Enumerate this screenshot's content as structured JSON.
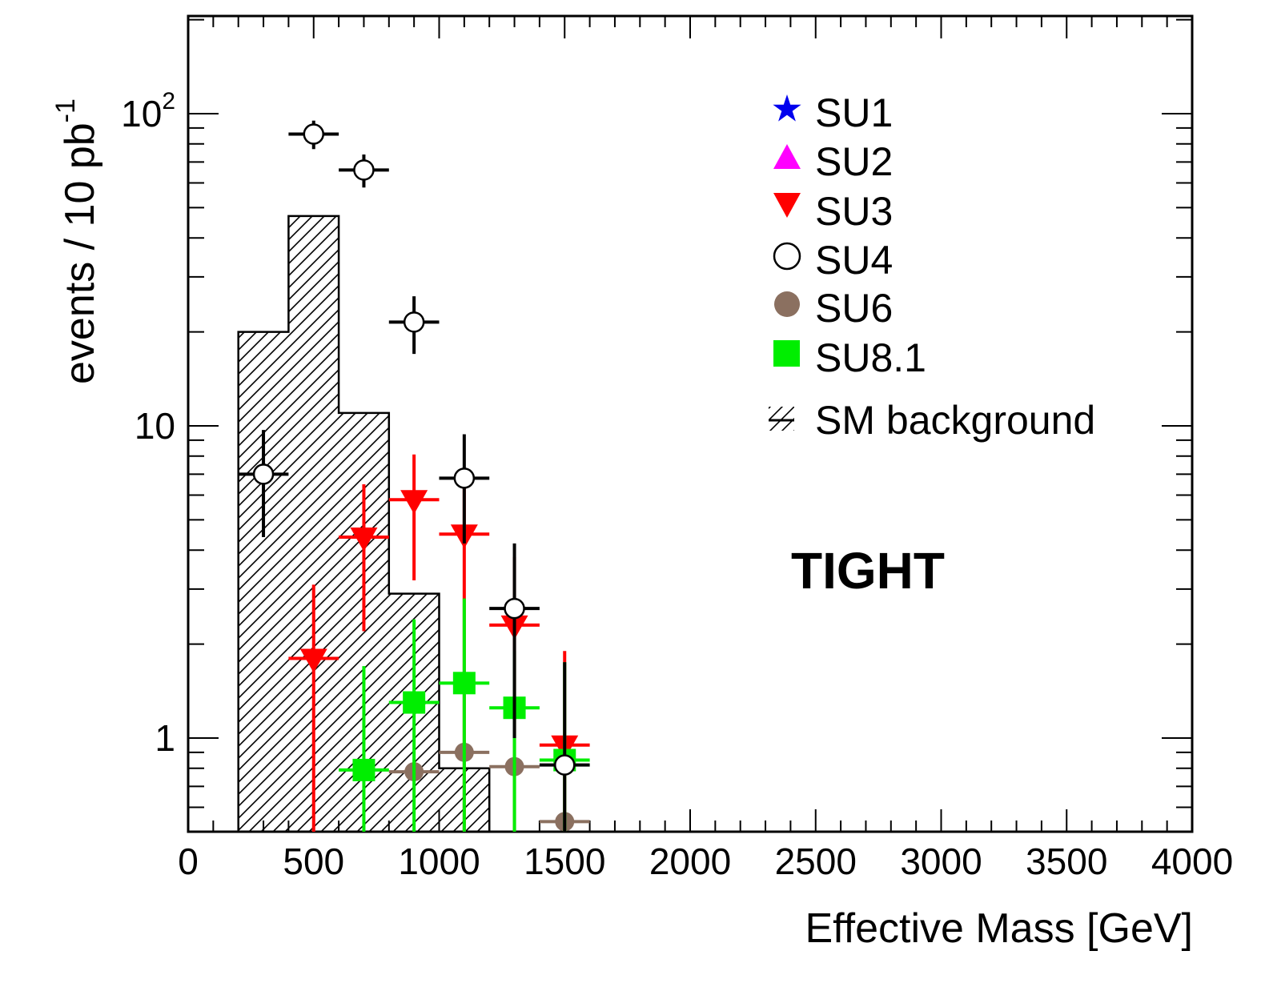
{
  "chart_data": {
    "type": "scatter",
    "xlabel": "Effective Mass [GeV]",
    "ylabel": "events / 10 pb",
    "ylabel_sup": "-1",
    "xlim": [
      0,
      4000
    ],
    "ylim": [
      0.5,
      240
    ],
    "y_scale": "log",
    "x_ticks": [
      "0",
      "500",
      "1000",
      "1500",
      "2000",
      "2500",
      "3000",
      "3500",
      "4000"
    ],
    "y_tick_labels": {
      "y1": "1",
      "y10": "10",
      "y100_base": "10",
      "y100_exp": "2"
    },
    "annotation": "TIGHT",
    "legend_position": "top-right",
    "legend": {
      "su1": "SU1",
      "su2": "SU2",
      "su3": "SU3",
      "su4": "SU4",
      "su6": "SU6",
      "su81": "SU8.1",
      "sm": "SM background"
    },
    "background": {
      "name": "SM background",
      "bin_edges": [
        200,
        400,
        600,
        800,
        1000,
        1200
      ],
      "values": [
        20,
        47,
        11,
        2.9,
        0.8
      ]
    },
    "series": [
      {
        "name": "SU3",
        "marker": "triangle-down",
        "color": "#ff0000",
        "points": [
          {
            "x": 500,
            "y": 1.8,
            "lo": 0.5,
            "hi": 3.1
          },
          {
            "x": 700,
            "y": 4.4,
            "lo": 2.2,
            "hi": 6.5
          },
          {
            "x": 900,
            "y": 5.8,
            "lo": 3.2,
            "hi": 8.1
          },
          {
            "x": 1100,
            "y": 4.5,
            "lo": 0.5,
            "hi": 6.6
          },
          {
            "x": 1300,
            "y": 2.3,
            "lo": 0.5,
            "hi": 3.8
          },
          {
            "x": 1500,
            "y": 0.95,
            "lo": 0.5,
            "hi": 1.9
          }
        ]
      },
      {
        "name": "SU6",
        "marker": "circle-filled",
        "color": "#8b7060",
        "points": [
          {
            "x": 900,
            "y": 0.78
          },
          {
            "x": 1100,
            "y": 0.9
          },
          {
            "x": 1300,
            "y": 0.81
          },
          {
            "x": 1500,
            "y": 0.54
          }
        ]
      },
      {
        "name": "SU8.1",
        "marker": "square",
        "color": "#00ee00",
        "points": [
          {
            "x": 700,
            "y": 0.79,
            "lo": 0.5,
            "hi": 1.7
          },
          {
            "x": 900,
            "y": 1.3,
            "lo": 0.5,
            "hi": 2.4
          },
          {
            "x": 1100,
            "y": 1.5,
            "lo": 0.5,
            "hi": 2.8
          },
          {
            "x": 1300,
            "y": 1.25,
            "lo": 0.5,
            "hi": 1.9
          },
          {
            "x": 1500,
            "y": 0.85,
            "lo": 0.5,
            "hi": 1.75
          }
        ]
      },
      {
        "name": "SU4",
        "marker": "circle-open",
        "color": "#000000",
        "points": [
          {
            "x": 300,
            "y": 7.0,
            "lo": 4.4,
            "hi": 9.7
          },
          {
            "x": 500,
            "y": 86,
            "lo": 77,
            "hi": 95
          },
          {
            "x": 700,
            "y": 66,
            "lo": 58,
            "hi": 74
          },
          {
            "x": 900,
            "y": 21.5,
            "lo": 17,
            "hi": 26
          },
          {
            "x": 1100,
            "y": 6.8,
            "lo": 4.2,
            "hi": 9.4
          },
          {
            "x": 1300,
            "y": 2.6,
            "lo": 1.0,
            "hi": 4.2
          },
          {
            "x": 1500,
            "y": 0.82,
            "lo": 0.5,
            "hi": 1.75
          }
        ]
      }
    ]
  }
}
